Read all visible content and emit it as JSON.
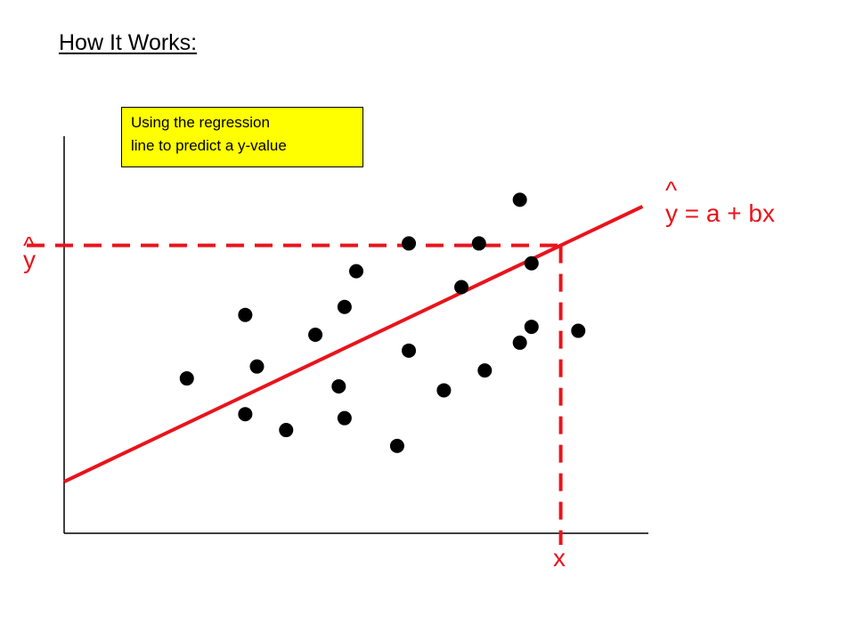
{
  "title": "How It Works:",
  "callout": {
    "line1": "Using the regression",
    "line2": "line to predict a y-value",
    "background": "#ffff00"
  },
  "equation": {
    "hat": "^",
    "text": "y = a + bx"
  },
  "y_hat_label": {
    "hat": "^",
    "symbol": "y"
  },
  "x_label": "x",
  "colors": {
    "regression_line": "#e8141c",
    "points": "#000000",
    "axes": "#000000",
    "text": "#e8141c"
  },
  "chart_data": {
    "type": "scatter",
    "xlim": [
      0,
      100
    ],
    "ylim": [
      0,
      100
    ],
    "points": [
      {
        "x": 21,
        "y": 39
      },
      {
        "x": 31,
        "y": 55
      },
      {
        "x": 31,
        "y": 30
      },
      {
        "x": 33,
        "y": 42
      },
      {
        "x": 38,
        "y": 26
      },
      {
        "x": 43,
        "y": 50
      },
      {
        "x": 47,
        "y": 37
      },
      {
        "x": 48,
        "y": 57
      },
      {
        "x": 48,
        "y": 29
      },
      {
        "x": 50,
        "y": 66
      },
      {
        "x": 57,
        "y": 22
      },
      {
        "x": 59,
        "y": 46
      },
      {
        "x": 59,
        "y": 73
      },
      {
        "x": 65,
        "y": 36
      },
      {
        "x": 68,
        "y": 62
      },
      {
        "x": 71,
        "y": 73
      },
      {
        "x": 72,
        "y": 41
      },
      {
        "x": 78,
        "y": 48
      },
      {
        "x": 78,
        "y": 84
      },
      {
        "x": 80,
        "y": 52
      },
      {
        "x": 80,
        "y": 68
      },
      {
        "x": 88,
        "y": 51
      }
    ],
    "regression_line": {
      "intercept": 13,
      "slope": 0.7,
      "x_range": [
        0,
        99
      ]
    },
    "prediction": {
      "x": 85
    }
  }
}
